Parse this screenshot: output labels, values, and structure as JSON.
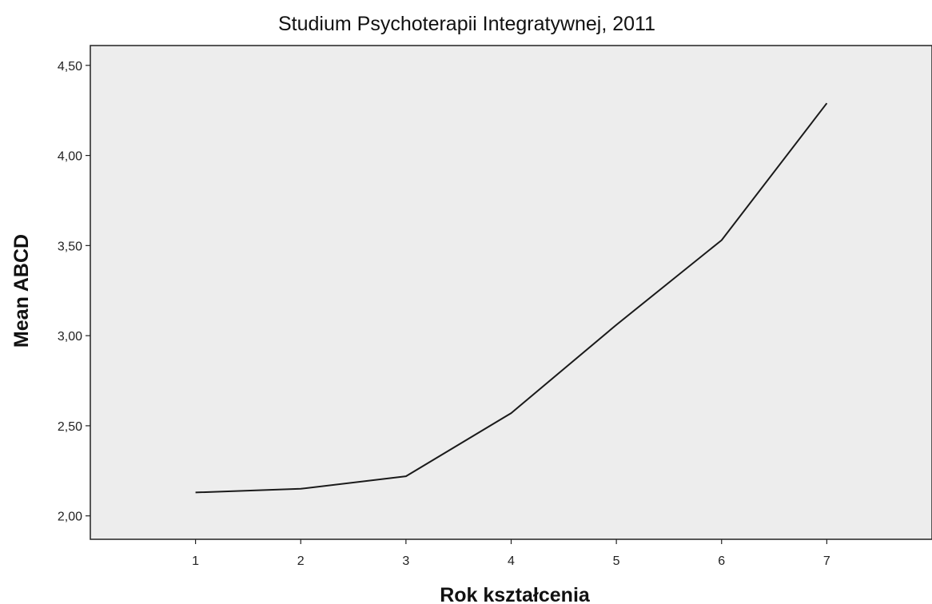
{
  "chart_data": {
    "type": "line",
    "title": "Studium Psychoterapii Integratywnej, 2011",
    "xlabel": "Rok kształcenia",
    "ylabel": "Mean ABCD",
    "x": [
      1,
      2,
      3,
      4,
      5,
      6,
      7
    ],
    "series": [
      {
        "values": [
          2.13,
          2.15,
          2.22,
          2.57,
          3.06,
          3.53,
          4.29
        ]
      }
    ],
    "xlim": [
      0,
      8
    ],
    "ylim": [
      1.87,
      4.61
    ],
    "x_ticks": [
      "1",
      "2",
      "3",
      "4",
      "5",
      "6",
      "7"
    ],
    "y_ticks": [
      2.0,
      2.5,
      3.0,
      3.5,
      4.0,
      4.5
    ],
    "y_tick_labels": [
      "2,00",
      "2,50",
      "3,00",
      "3,50",
      "4,00",
      "4,50"
    ],
    "grid": false,
    "colors": {
      "plot_background": "#ededed",
      "line": "#1a1a1a",
      "frame": "#222222"
    }
  }
}
